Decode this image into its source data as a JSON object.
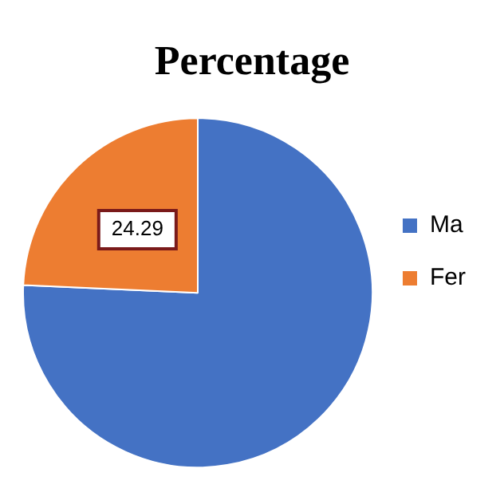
{
  "chart_data": {
    "type": "pie",
    "title": "Percentage",
    "categories": [
      "Ma",
      "Fer"
    ],
    "values": [
      75.71,
      24.29
    ],
    "colors": [
      "#4472c4",
      "#ed7d31"
    ],
    "value_labels": [
      null,
      "24.29"
    ],
    "legend": "right"
  }
}
